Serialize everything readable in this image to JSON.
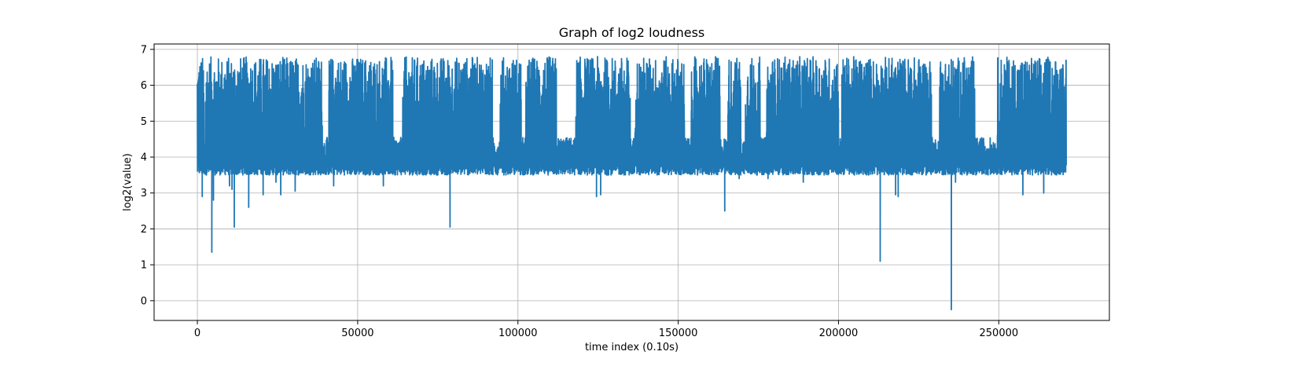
{
  "chart_data": {
    "type": "line",
    "title": "Graph of log2 loudness",
    "xlabel": "time index (0.10s)",
    "ylabel": "log2(value)",
    "xlim": [
      -13500,
      284500
    ],
    "ylim": [
      -0.55,
      7.15
    ],
    "xticks": [
      0,
      50000,
      100000,
      150000,
      200000,
      250000
    ],
    "yticks": [
      0,
      1,
      2,
      3,
      4,
      5,
      6,
      7
    ],
    "grid": true,
    "legend": "none",
    "series": [
      {
        "color": "#1f77b4",
        "x_range": [
          0,
          271000
        ],
        "baseline_range": [
          3.5,
          3.85
        ],
        "peak_range": [
          4.6,
          6.8
        ],
        "dips": [
          {
            "x": 1500,
            "y": 2.9
          },
          {
            "x": 4500,
            "y": 1.35
          },
          {
            "x": 5000,
            "y": 2.8
          },
          {
            "x": 10000,
            "y": 3.2
          },
          {
            "x": 10800,
            "y": 3.1
          },
          {
            "x": 11500,
            "y": 2.05
          },
          {
            "x": 16000,
            "y": 2.6
          },
          {
            "x": 20500,
            "y": 2.95
          },
          {
            "x": 24500,
            "y": 3.3
          },
          {
            "x": 26000,
            "y": 2.95
          },
          {
            "x": 30500,
            "y": 3.05
          },
          {
            "x": 42500,
            "y": 3.2
          },
          {
            "x": 58000,
            "y": 3.2
          },
          {
            "x": 78800,
            "y": 2.05
          },
          {
            "x": 124500,
            "y": 2.9
          },
          {
            "x": 125800,
            "y": 2.95
          },
          {
            "x": 164500,
            "y": 2.5
          },
          {
            "x": 169000,
            "y": 3.4
          },
          {
            "x": 178000,
            "y": 3.4
          },
          {
            "x": 189000,
            "y": 3.3
          },
          {
            "x": 213000,
            "y": 1.1
          },
          {
            "x": 217800,
            "y": 2.95
          },
          {
            "x": 218600,
            "y": 2.9
          },
          {
            "x": 235200,
            "y": -0.25
          },
          {
            "x": 236500,
            "y": 3.3
          },
          {
            "x": 257500,
            "y": 2.95
          },
          {
            "x": 264000,
            "y": 3.0
          }
        ],
        "bursts": [
          [
            0,
            2000
          ],
          [
            2500,
            39000
          ],
          [
            41000,
            61000
          ],
          [
            64000,
            92000
          ],
          [
            94500,
            101000
          ],
          [
            102500,
            112000
          ],
          [
            118000,
            135000
          ],
          [
            136500,
            152000
          ],
          [
            154000,
            163000
          ],
          [
            165500,
            169500
          ],
          [
            171000,
            175500
          ],
          [
            177500,
            200000
          ],
          [
            201000,
            229000
          ],
          [
            231500,
            242500
          ],
          [
            249500,
            271000
          ]
        ]
      }
    ]
  }
}
